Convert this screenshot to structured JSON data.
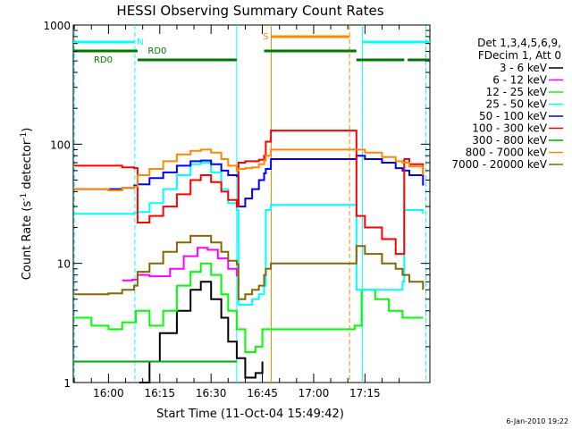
{
  "chart_data": {
    "type": "line",
    "title": "HESSI Observing Summary Count Rates",
    "xlabel": "Start Time (11-Oct-04 15:49:42)",
    "ylabel_main": "Count Rate (s",
    "ylabel_sup1": "-1",
    "ylabel_mid": " detector",
    "ylabel_sup2": "-1",
    "ylabel_end": ")",
    "y_scale": "log",
    "ylim": [
      1,
      1000
    ],
    "xlim_minutes": [
      -10.3,
      94.0
    ],
    "x_ticks": [
      {
        "t": 0,
        "label": "16:00"
      },
      {
        "t": 15,
        "label": "16:15"
      },
      {
        "t": 30,
        "label": "16:30"
      },
      {
        "t": 45,
        "label": "16:45"
      },
      {
        "t": 60,
        "label": "17:00"
      },
      {
        "t": 75,
        "label": "17:15"
      }
    ],
    "y_ticks": [
      {
        "v": 1,
        "label": "1"
      },
      {
        "v": 10,
        "label": "10"
      },
      {
        "v": 100,
        "label": "100"
      },
      {
        "v": 1000,
        "label": "1000"
      }
    ],
    "legend_header": [
      "Det 1,3,4,5,6,9,",
      "FDecim 1, Att 0"
    ],
    "series": [
      {
        "name": "3 - 6 keV",
        "color": "#000000",
        "points": [
          [
            9,
            1.0
          ],
          [
            12,
            1.5
          ],
          [
            15,
            2.6
          ],
          [
            20,
            4.0
          ],
          [
            24,
            6.0
          ],
          [
            27,
            7.0
          ],
          [
            30,
            5.0
          ],
          [
            33,
            3.5
          ],
          [
            35,
            2.2
          ],
          [
            37.5,
            1.6
          ],
          [
            40,
            1.1
          ],
          [
            43,
            1.2
          ],
          [
            45,
            1.5
          ]
        ]
      },
      {
        "name": "6 - 12 keV",
        "color": "#ff00ff",
        "points": [
          [
            4,
            7.2
          ],
          [
            7,
            7.3
          ],
          [
            8.5,
            8.0
          ],
          [
            12,
            7.8
          ],
          [
            18,
            9.0
          ],
          [
            22,
            11.5
          ],
          [
            26,
            13.5
          ],
          [
            29,
            13.0
          ],
          [
            32,
            11.0
          ],
          [
            35,
            9.0
          ],
          [
            37.5,
            7.8
          ]
        ]
      },
      {
        "name": "12 - 25 keV",
        "color": "#00ff00",
        "points": [
          [
            -10,
            3.5
          ],
          [
            -5,
            3.0
          ],
          [
            0,
            2.8
          ],
          [
            4,
            3.2
          ],
          [
            8,
            4.0
          ],
          [
            12,
            3.0
          ],
          [
            16,
            4.0
          ],
          [
            20,
            6.5
          ],
          [
            24,
            8.5
          ],
          [
            27,
            10.0
          ],
          [
            30,
            8.0
          ],
          [
            33,
            5.5
          ],
          [
            35,
            4.0
          ],
          [
            37.5,
            2.8
          ],
          [
            40,
            1.8
          ],
          [
            43,
            2.0
          ],
          [
            45,
            2.8
          ],
          [
            72,
            3.0
          ],
          [
            74,
            6.0
          ],
          [
            78,
            5.0
          ],
          [
            82,
            4.0
          ],
          [
            86,
            3.5
          ],
          [
            88,
            3.5
          ],
          [
            92,
            3.5
          ]
        ]
      },
      {
        "name": "25 - 50 keV",
        "color": "#00ffff",
        "points": [
          [
            -10,
            26
          ],
          [
            -5,
            26
          ],
          [
            0,
            26
          ],
          [
            4,
            26
          ],
          [
            7.5,
            26.5
          ],
          [
            8.5,
            27
          ],
          [
            12,
            32
          ],
          [
            16,
            42
          ],
          [
            20,
            55
          ],
          [
            24,
            68
          ],
          [
            27,
            70
          ],
          [
            30,
            58
          ],
          [
            33,
            42
          ],
          [
            35,
            32
          ],
          [
            37.5,
            28
          ],
          [
            38,
            4.5
          ],
          [
            40,
            4.5
          ],
          [
            42,
            5.0
          ],
          [
            44,
            5.5
          ],
          [
            45.5,
            6.5
          ],
          [
            46,
            28
          ],
          [
            47.5,
            31
          ],
          [
            72.5,
            6.0
          ],
          [
            76,
            6.0
          ],
          [
            80,
            6.0
          ],
          [
            84,
            6.0
          ],
          [
            86,
            7.0
          ],
          [
            86.5,
            28
          ],
          [
            92,
            26
          ]
        ]
      },
      {
        "name": "50 - 100 keV",
        "color": "#0000ff",
        "points": [
          [
            -10,
            42
          ],
          [
            -5,
            42
          ],
          [
            0,
            42
          ],
          [
            4,
            43
          ],
          [
            7.5,
            45
          ],
          [
            8.5,
            46
          ],
          [
            12,
            52
          ],
          [
            16,
            58
          ],
          [
            20,
            66
          ],
          [
            24,
            72
          ],
          [
            27,
            73
          ],
          [
            30,
            68
          ],
          [
            33,
            60
          ],
          [
            35,
            55
          ],
          [
            37.5,
            54
          ],
          [
            38,
            30
          ],
          [
            40,
            35
          ],
          [
            42,
            42
          ],
          [
            44,
            50
          ],
          [
            45.5,
            57
          ],
          [
            46,
            62
          ],
          [
            47.5,
            75
          ],
          [
            72.5,
            80
          ],
          [
            75,
            75
          ],
          [
            80,
            70
          ],
          [
            84,
            63
          ],
          [
            86,
            60
          ],
          [
            88,
            55
          ],
          [
            92,
            45
          ]
        ]
      },
      {
        "name": "100 - 300 keV",
        "color": "#ff0000",
        "points": [
          [
            -10,
            66
          ],
          [
            -5,
            66
          ],
          [
            0,
            66
          ],
          [
            4,
            64
          ],
          [
            7.5,
            63
          ],
          [
            8.5,
            22
          ],
          [
            12,
            25
          ],
          [
            16,
            30
          ],
          [
            20,
            38
          ],
          [
            24,
            50
          ],
          [
            27,
            55
          ],
          [
            30,
            48
          ],
          [
            33,
            40
          ],
          [
            35,
            34
          ],
          [
            37.5,
            30
          ],
          [
            38,
            70
          ],
          [
            40,
            72
          ],
          [
            42,
            72
          ],
          [
            44,
            74
          ],
          [
            45.5,
            80
          ],
          [
            46,
            105
          ],
          [
            47.5,
            130
          ],
          [
            72.5,
            25
          ],
          [
            75,
            20
          ],
          [
            80,
            16
          ],
          [
            84,
            12
          ],
          [
            86,
            12
          ],
          [
            86.5,
            75
          ],
          [
            88,
            68
          ],
          [
            92,
            55
          ]
        ]
      },
      {
        "name": "300 - 800 keV",
        "color": "#00aa00",
        "points": [
          [
            -10,
            1.5
          ],
          [
            -5,
            1.5
          ],
          [
            0,
            1.5
          ],
          [
            5,
            1.5
          ],
          [
            10,
            1.5
          ],
          [
            20,
            1.5
          ],
          [
            30,
            1.5
          ],
          [
            37.5,
            1.5
          ]
        ]
      },
      {
        "name": "800 - 7000 keV",
        "color": "#ff8800",
        "points": [
          [
            -10,
            42
          ],
          [
            -5,
            42
          ],
          [
            0,
            41
          ],
          [
            4,
            43
          ],
          [
            7.5,
            44
          ],
          [
            8.5,
            55
          ],
          [
            12,
            62
          ],
          [
            16,
            72
          ],
          [
            20,
            82
          ],
          [
            24,
            88
          ],
          [
            27,
            90
          ],
          [
            30,
            85
          ],
          [
            33,
            75
          ],
          [
            35,
            66
          ],
          [
            37.5,
            60
          ],
          [
            38,
            62
          ],
          [
            40,
            63
          ],
          [
            42,
            64
          ],
          [
            44,
            68
          ],
          [
            45.5,
            73
          ],
          [
            46,
            80
          ],
          [
            47.5,
            90
          ],
          [
            72.5,
            90
          ],
          [
            75,
            85
          ],
          [
            80,
            78
          ],
          [
            84,
            72
          ],
          [
            86,
            70
          ],
          [
            88,
            65
          ],
          [
            92,
            55
          ]
        ]
      },
      {
        "name": "7000 - 20000 keV",
        "color": "#886600",
        "points": [
          [
            -10,
            5.5
          ],
          [
            -5,
            5.5
          ],
          [
            0,
            5.6
          ],
          [
            4,
            6.0
          ],
          [
            7.5,
            6.5
          ],
          [
            8.5,
            8.5
          ],
          [
            12,
            10
          ],
          [
            16,
            12.5
          ],
          [
            20,
            15
          ],
          [
            24,
            17
          ],
          [
            27,
            17
          ],
          [
            30,
            15
          ],
          [
            33,
            12.5
          ],
          [
            35,
            10.5
          ],
          [
            37.5,
            9.8
          ],
          [
            38,
            5.0
          ],
          [
            40,
            5.5
          ],
          [
            42,
            6.0
          ],
          [
            44,
            6.5
          ],
          [
            45.5,
            8.0
          ],
          [
            46,
            9.0
          ],
          [
            47.5,
            10
          ],
          [
            72.5,
            14
          ],
          [
            75,
            12
          ],
          [
            80,
            10
          ],
          [
            84,
            9
          ],
          [
            86,
            8
          ],
          [
            88,
            7
          ],
          [
            92,
            6.0
          ]
        ]
      }
    ],
    "annotations": [
      {
        "text": "N",
        "color": "#00ffff"
      },
      {
        "text": "RD0",
        "color": "#007700"
      },
      {
        "text": "RD0",
        "color": "#007700"
      },
      {
        "text": "S",
        "color": "#ff8800"
      }
    ],
    "flag_bars": [
      {
        "name": "N",
        "color": "#00ffff",
        "level": 0,
        "segments": [
          [
            -10.3,
            7.7
          ],
          [
            74.3,
            94.0
          ]
        ]
      },
      {
        "name": "RD0",
        "color": "#007700",
        "level": 1,
        "segments": [
          [
            -10.3,
            8.5
          ]
        ]
      },
      {
        "name": "RD0",
        "color": "#007700",
        "level": 1,
        "segments": [
          [
            45.5,
            72.5
          ]
        ]
      },
      {
        "name": "RD0",
        "color": "#007700",
        "level": 2,
        "segments": [
          [
            8.5,
            37.5
          ],
          [
            72.5,
            86.5
          ],
          [
            87.5,
            94.0
          ]
        ]
      },
      {
        "name": "S",
        "color": "#ff8800",
        "level": 0,
        "segments": [
          [
            47.6,
            70.5
          ]
        ]
      }
    ],
    "vertical_markers": [
      {
        "t": -10.0,
        "color": "#00ffff",
        "style": "dashed"
      },
      {
        "t": 7.7,
        "color": "#00ffff",
        "style": "dashed"
      },
      {
        "t": 37.5,
        "color": "#00ffff",
        "style": "solid"
      },
      {
        "t": 47.6,
        "color": "#ff8800",
        "style": "solid"
      },
      {
        "t": 70.5,
        "color": "#ff8800",
        "style": "dashed"
      },
      {
        "t": 74.3,
        "color": "#00ffff",
        "style": "solid"
      },
      {
        "t": 92.8,
        "color": "#00ffff",
        "style": "dashed"
      }
    ],
    "footer_date": "6-Jan-2010 19:22"
  }
}
